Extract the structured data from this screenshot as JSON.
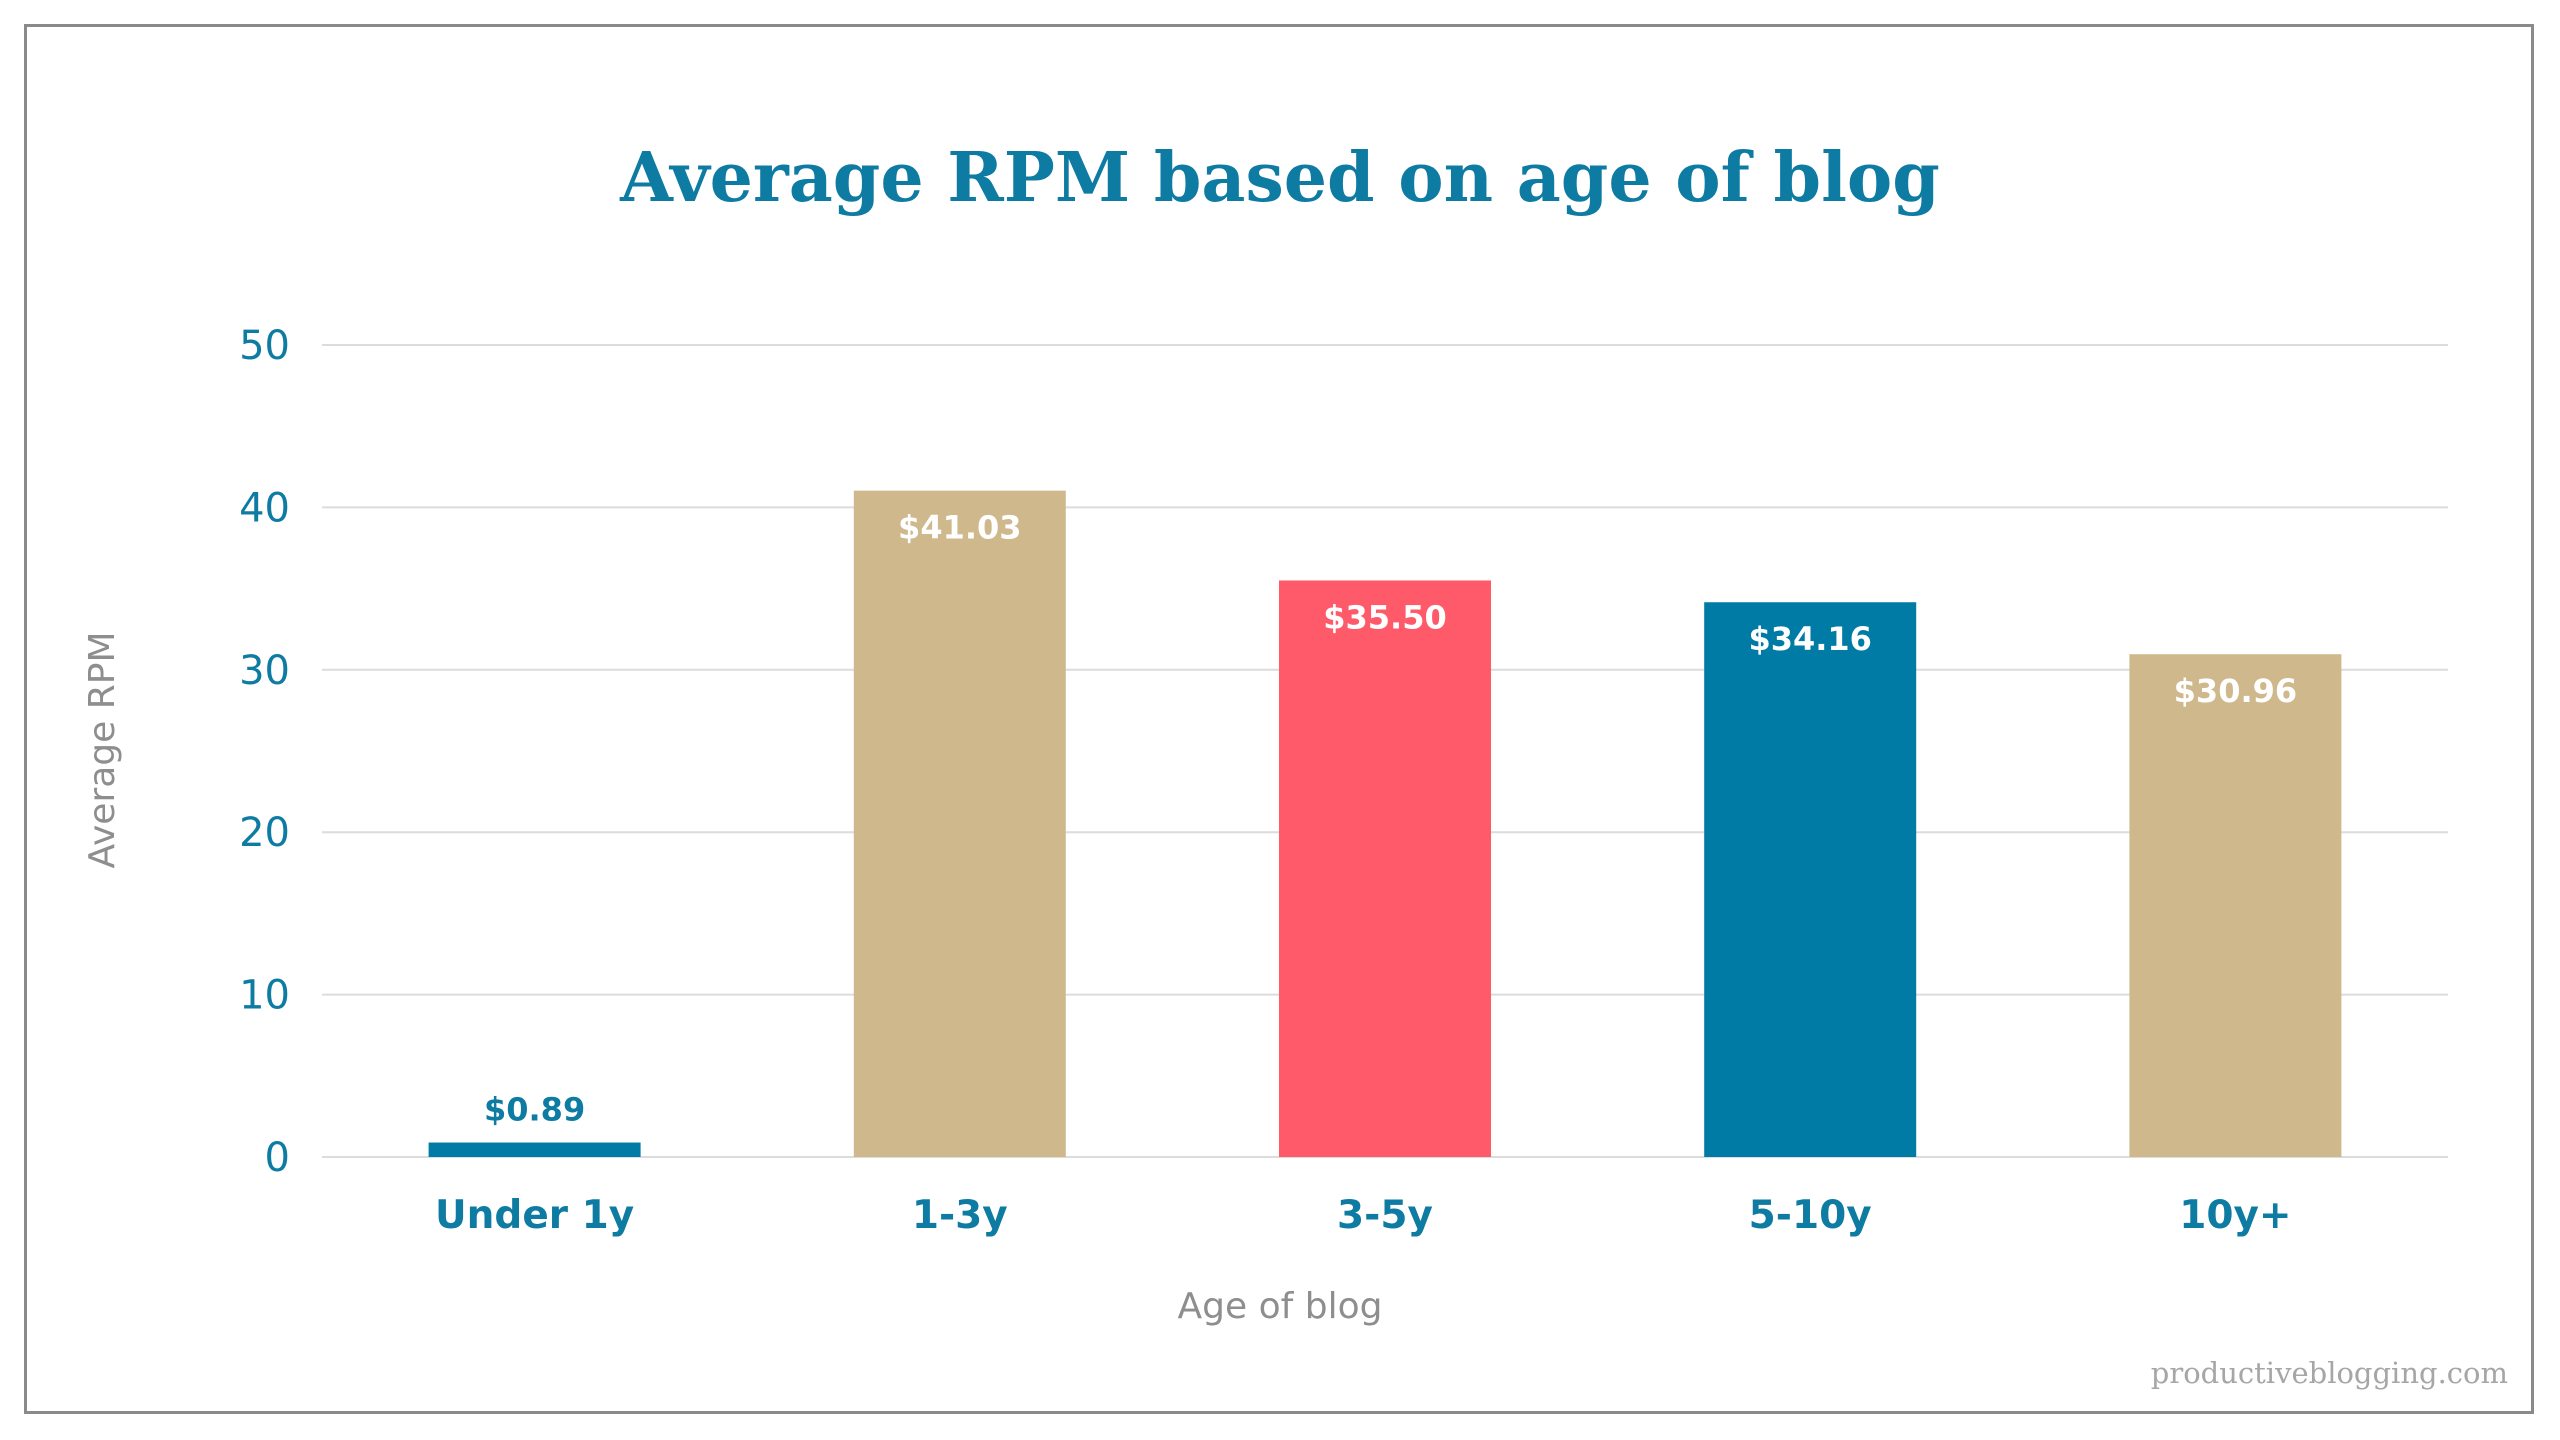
{
  "chart_data": {
    "type": "bar",
    "title": "Average RPM based on age of blog",
    "xlabel": "Age of blog",
    "ylabel": "Average RPM",
    "categories": [
      "Under 1y",
      "1-3y",
      "3-5y",
      "5-10y",
      "10y+"
    ],
    "values": [
      0.89,
      41.03,
      35.5,
      34.16,
      30.96
    ],
    "data_labels": [
      "$0.89",
      "$41.03",
      "$35.50",
      "$34.16",
      "$30.96"
    ],
    "bar_colors": [
      "#007ba6",
      "#cfb98c",
      "#ff5a6a",
      "#007ba6",
      "#cfb98c"
    ],
    "ylim": [
      0,
      50
    ],
    "yticks": [
      0,
      10,
      20,
      30,
      40,
      50
    ],
    "grid": true,
    "legend": "none"
  },
  "colors": {
    "accent": "#0e7ba3",
    "grid": "#dcdcdc",
    "axis_title": "#8e8e8e",
    "label_inside": "#ffffff"
  },
  "watermark": "productiveblogging.com"
}
